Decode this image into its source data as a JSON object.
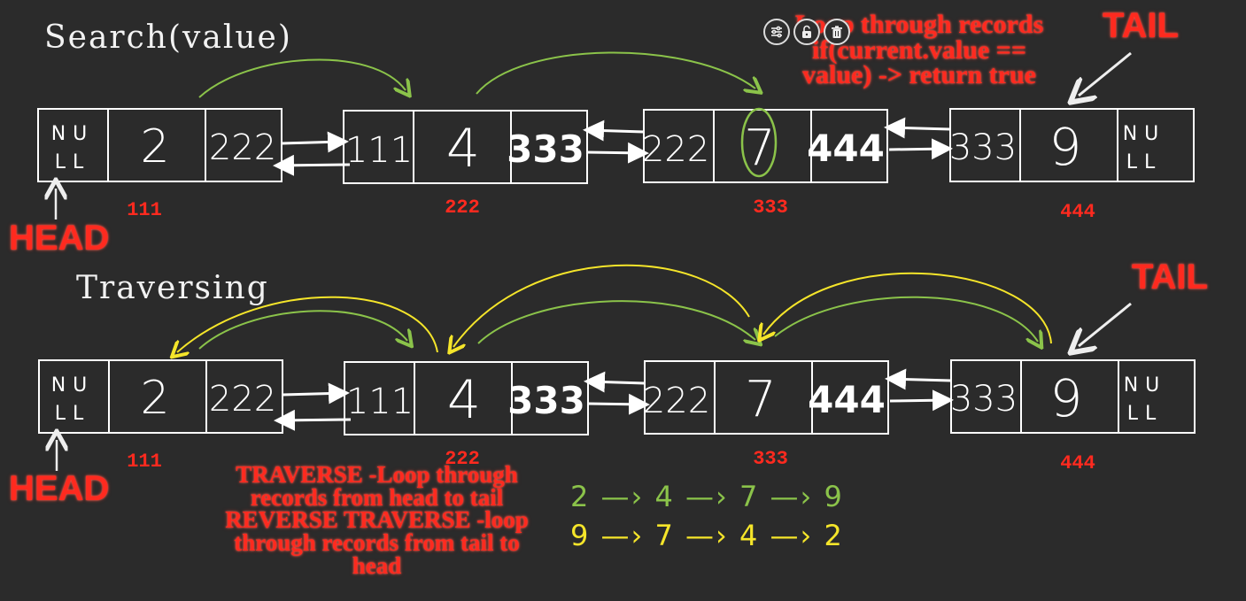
{
  "search_section": {
    "title": "Search(value)",
    "note_lines": [
      "Loop through records",
      "if(current.value ==",
      "value) -> return true"
    ],
    "tail_label": "TAIL",
    "head_label": "HEAD",
    "nodes": [
      {
        "prev": "NULL",
        "value": "2",
        "next": "222",
        "address": "111"
      },
      {
        "prev": "111",
        "value": "4",
        "next": "333",
        "address": "222"
      },
      {
        "prev": "222",
        "value": "7",
        "next": "444",
        "address": "333"
      },
      {
        "prev": "333",
        "value": "9",
        "next": "NULL",
        "address": "444"
      }
    ]
  },
  "traverse_section": {
    "title": "Traversing",
    "tail_label": "TAIL",
    "head_label": "HEAD",
    "note_lines": [
      "TRAVERSE -Loop through",
      "records from head to tail",
      "REVERSE TRAVERSE -loop",
      "through records from tail to",
      "head"
    ],
    "forward_sequence": "2 —› 4 —› 7 —› 9",
    "reverse_sequence": "9 —› 7 —› 4 —› 2",
    "nodes": [
      {
        "prev": "NULL",
        "value": "2",
        "next": "222",
        "address": "111"
      },
      {
        "prev": "111",
        "value": "4",
        "next": "333",
        "address": "222"
      },
      {
        "prev": "222",
        "value": "7",
        "next": "444",
        "address": "333"
      },
      {
        "prev": "333",
        "value": "9",
        "next": "NULL",
        "address": "444"
      }
    ]
  },
  "toolbar": {
    "icons": [
      "sliders-icon",
      "unlock-icon",
      "trash-icon"
    ]
  },
  "colors": {
    "background": "#2b2b2b",
    "node_border": "#ffffff",
    "address": "#ff2a1f",
    "green_arrow": "#8bc34a",
    "yellow_arrow": "#f5e52a"
  }
}
